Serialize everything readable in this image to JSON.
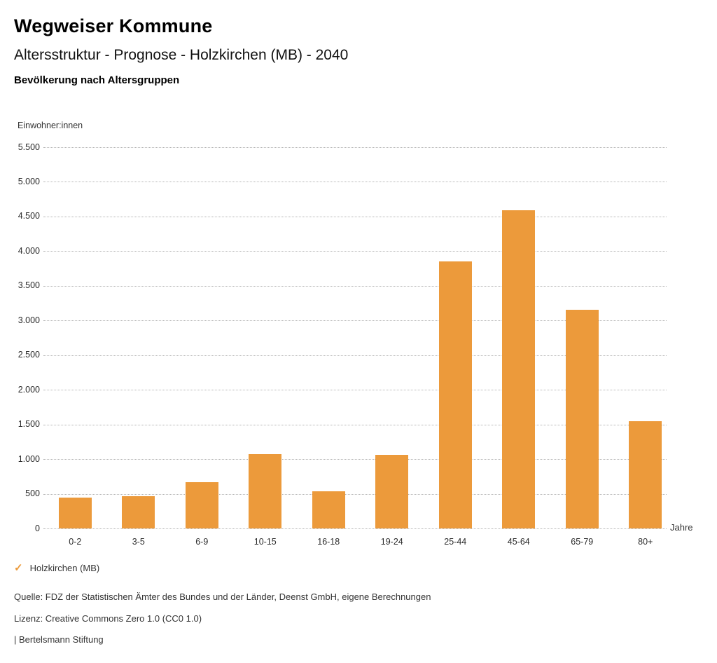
{
  "header": {
    "title": "Wegweiser Kommune",
    "subtitle": "Altersstruktur - Prognose - Holzkirchen (MB) - 2040",
    "chart_heading": "Bevölkerung nach Altersgruppen"
  },
  "axis": {
    "y_unit_label": "Einwohner:innen",
    "x_unit_label": "Jahre"
  },
  "chart_data": {
    "type": "bar",
    "title": "Bevölkerung nach Altersgruppen",
    "categories": [
      "0-2",
      "3-5",
      "6-9",
      "10-15",
      "16-18",
      "19-24",
      "25-44",
      "45-64",
      "65-79",
      "80+"
    ],
    "series": [
      {
        "name": "Holzkirchen (MB)",
        "values": [
          440,
          470,
          670,
          1075,
          540,
          1060,
          3855,
          4590,
          3150,
          1550
        ]
      }
    ],
    "xlabel": "Jahre",
    "ylabel": "Einwohner:innen",
    "ylim": [
      0,
      5500
    ],
    "ytick_step": 500,
    "ytick_labels": [
      "0",
      "500",
      "1.000",
      "1.500",
      "2.000",
      "2.500",
      "3.000",
      "3.500",
      "4.000",
      "4.500",
      "5.000",
      "5.500"
    ],
    "grid": "horizontal-dotted",
    "legend_position": "bottom-left"
  },
  "legend": {
    "items": [
      {
        "check": "✓",
        "label": "Holzkirchen (MB)",
        "checked": true
      }
    ]
  },
  "footer": {
    "source": "Quelle: FDZ der Statistischen Ämter des Bundes und der Länder, Deenst GmbH, eigene Berechnungen",
    "license": "Lizenz: Creative Commons Zero 1.0 (CC0 1.0)",
    "attribution": "| Bertelsmann Stiftung"
  },
  "colors": {
    "bar": "#EC9A3B",
    "accent": "#EC9A3B",
    "grid": "#B5B5B5",
    "text": "#333333"
  }
}
